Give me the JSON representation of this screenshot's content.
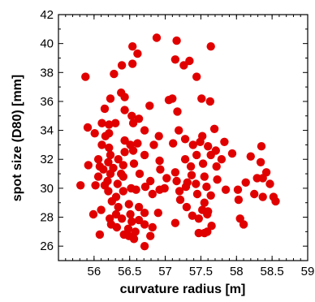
{
  "chart_data": {
    "type": "scatter",
    "title": "",
    "xlabel": "curvature radius [m]",
    "ylabel": "spot size (D80) [mm]",
    "xlim": [
      55.5,
      59
    ],
    "ylim": [
      25,
      42
    ],
    "xticks": [
      "56",
      "56.5",
      "57",
      "57.5",
      "58",
      "58.5",
      "59"
    ],
    "yticks": [
      "26",
      "28",
      "30",
      "32",
      "34",
      "36",
      "38",
      "40",
      "42"
    ],
    "grid": false,
    "legend": "none",
    "marker_color": "#e10000",
    "series": [
      {
        "points": [
          [
            56.88,
            40.4
          ],
          [
            57.16,
            40.2
          ],
          [
            56.54,
            39.8
          ],
          [
            57.64,
            39.8
          ],
          [
            56.61,
            39.3
          ],
          [
            57.14,
            38.9
          ],
          [
            57.34,
            38.8
          ],
          [
            56.39,
            38.5
          ],
          [
            57.26,
            38.5
          ],
          [
            56.54,
            38.6
          ],
          [
            55.88,
            37.7
          ],
          [
            56.28,
            37.9
          ],
          [
            57.44,
            37.7
          ],
          [
            56.38,
            36.6
          ],
          [
            57.05,
            36.1
          ],
          [
            56.23,
            36.2
          ],
          [
            56.43,
            36.3
          ],
          [
            57.51,
            36.2
          ],
          [
            57.1,
            36.2
          ],
          [
            57.63,
            36.0
          ],
          [
            56.78,
            35.7
          ],
          [
            56.15,
            35.5
          ],
          [
            56.43,
            35.4
          ],
          [
            57.17,
            35.3
          ],
          [
            56.53,
            35.0
          ],
          [
            56.63,
            34.8
          ],
          [
            56.21,
            34.4
          ],
          [
            56.55,
            34.5
          ],
          [
            56.11,
            34.5
          ],
          [
            56.3,
            34.5
          ],
          [
            55.91,
            34.2
          ],
          [
            56.01,
            33.8
          ],
          [
            56.21,
            33.8
          ],
          [
            56.71,
            34.0
          ],
          [
            57.19,
            34.0
          ],
          [
            57.69,
            34.1
          ],
          [
            56.16,
            33.6
          ],
          [
            56.91,
            33.6
          ],
          [
            57.28,
            33.4
          ],
          [
            57.52,
            33.6
          ],
          [
            56.43,
            33.3
          ],
          [
            56.61,
            33.1
          ],
          [
            57.11,
            33.1
          ],
          [
            56.11,
            33.0
          ],
          [
            56.51,
            33.0
          ],
          [
            56.84,
            33.0
          ],
          [
            57.49,
            33.2
          ],
          [
            57.39,
            33.0
          ],
          [
            57.83,
            33.2
          ],
          [
            56.21,
            32.8
          ],
          [
            57.6,
            32.9
          ],
          [
            56.55,
            32.6
          ],
          [
            57.71,
            32.6
          ],
          [
            58.35,
            32.9
          ],
          [
            57.94,
            32.4
          ],
          [
            56.43,
            32.5
          ],
          [
            56.23,
            32.3
          ],
          [
            56.71,
            32.3
          ],
          [
            57.44,
            32.3
          ],
          [
            57.64,
            32.3
          ],
          [
            58.2,
            32.2
          ],
          [
            56.06,
            32.0
          ],
          [
            56.34,
            32.0
          ],
          [
            56.92,
            31.9
          ],
          [
            57.28,
            32.0
          ],
          [
            57.79,
            32.0
          ],
          [
            56.2,
            31.8
          ],
          [
            56.56,
            31.7
          ],
          [
            58.34,
            31.8
          ],
          [
            56.08,
            31.5
          ],
          [
            56.41,
            31.6
          ],
          [
            57.36,
            31.5
          ],
          [
            57.53,
            31.7
          ],
          [
            57.72,
            31.5
          ],
          [
            55.92,
            31.6
          ],
          [
            56.27,
            31.4
          ],
          [
            56.13,
            31.3
          ],
          [
            56.93,
            31.3
          ],
          [
            58.42,
            31.1
          ],
          [
            56.23,
            31.0
          ],
          [
            56.64,
            31.0
          ],
          [
            57.14,
            31.1
          ],
          [
            57.37,
            30.9
          ],
          [
            56.06,
            30.8
          ],
          [
            56.41,
            30.8
          ],
          [
            57.02,
            30.7
          ],
          [
            57.55,
            30.8
          ],
          [
            57.73,
            30.6
          ],
          [
            58.29,
            30.7
          ],
          [
            58.37,
            30.7
          ],
          [
            56.19,
            30.5
          ],
          [
            56.79,
            30.5
          ],
          [
            57.16,
            30.5
          ],
          [
            58.13,
            30.4
          ],
          [
            55.81,
            30.2
          ],
          [
            56.02,
            30.2
          ],
          [
            56.33,
            30.3
          ],
          [
            57.29,
            30.1
          ],
          [
            57.43,
            30.3
          ],
          [
            58.47,
            30.3
          ],
          [
            56.52,
            30.0
          ],
          [
            56.72,
            30.1
          ],
          [
            56.92,
            29.9
          ],
          [
            57.58,
            30.1
          ],
          [
            57.85,
            29.9
          ],
          [
            58.02,
            29.9
          ],
          [
            56.2,
            29.8
          ],
          [
            56.41,
            29.8
          ],
          [
            56.59,
            29.9
          ],
          [
            57.2,
            29.8
          ],
          [
            58.25,
            29.6
          ],
          [
            56.82,
            29.6
          ],
          [
            58.52,
            29.4
          ],
          [
            56.31,
            29.4
          ],
          [
            57.45,
            29.6
          ],
          [
            57.64,
            29.5
          ],
          [
            58.37,
            29.4
          ],
          [
            58.03,
            29.2
          ],
          [
            56.25,
            29.1
          ],
          [
            57.21,
            29.2
          ],
          [
            58.55,
            29.1
          ],
          [
            56.49,
            28.9
          ],
          [
            57.55,
            29.0
          ],
          [
            56.34,
            28.7
          ],
          [
            56.63,
            28.7
          ],
          [
            57.3,
            28.7
          ],
          [
            56.1,
            28.5
          ],
          [
            56.71,
            28.3
          ],
          [
            57.52,
            28.5
          ],
          [
            57.6,
            28.4
          ],
          [
            56.31,
            28.2
          ],
          [
            56.51,
            28.2
          ],
          [
            56.9,
            28.3
          ],
          [
            55.99,
            28.2
          ],
          [
            57.38,
            28.1
          ],
          [
            57.59,
            28.2
          ],
          [
            56.22,
            27.9
          ],
          [
            56.39,
            27.9
          ],
          [
            56.63,
            27.8
          ],
          [
            57.47,
            27.9
          ],
          [
            58.05,
            27.9
          ],
          [
            56.53,
            27.7
          ],
          [
            56.24,
            27.5
          ],
          [
            56.71,
            27.5
          ],
          [
            56.82,
            27.3
          ],
          [
            57.14,
            27.6
          ],
          [
            58.1,
            27.5
          ],
          [
            57.65,
            27.4
          ],
          [
            56.32,
            27.3
          ],
          [
            56.48,
            27.2
          ],
          [
            56.58,
            27.0
          ],
          [
            57.59,
            27.0
          ],
          [
            56.08,
            26.8
          ],
          [
            56.42,
            26.8
          ],
          [
            56.79,
            26.7
          ],
          [
            57.47,
            26.9
          ],
          [
            57.55,
            26.9
          ],
          [
            56.56,
            26.5
          ],
          [
            56.49,
            26.7
          ],
          [
            56.71,
            26.0
          ],
          [
            57.31,
            30.4
          ],
          [
            56.99,
            30.0
          ],
          [
            56.38,
            31.0
          ],
          [
            56.15,
            30.2
          ]
        ]
      }
    ]
  }
}
